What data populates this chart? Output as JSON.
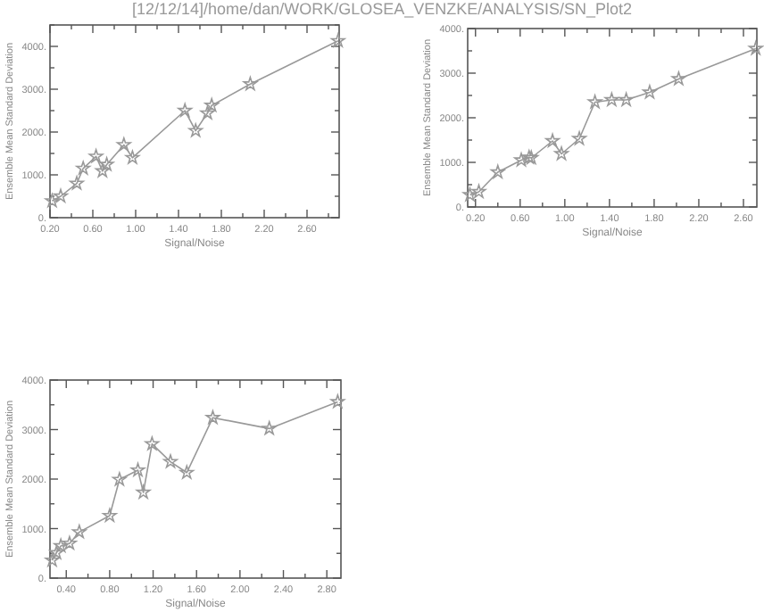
{
  "chart_data": [
    {
      "type": "line",
      "title": "[12/12/14]/home/dan/WORK/GLOSEA_VENZKE/ANALYSIS/SN_Plot2",
      "xlabel": "Signal/Noise",
      "ylabel": "Ensemble Mean Standard Deviation",
      "marker": "star",
      "line_style": "solid",
      "grid": false,
      "xlim": [
        0.2,
        2.9
      ],
      "ylim": [
        0,
        4500
      ],
      "xticks": [
        {
          "value": 0.2,
          "label": "0.20"
        },
        {
          "value": 0.4,
          "label": null
        },
        {
          "value": 0.6,
          "label": "0.60"
        },
        {
          "value": 0.8,
          "label": null
        },
        {
          "value": 1.0,
          "label": "1.00"
        },
        {
          "value": 1.2,
          "label": null
        },
        {
          "value": 1.4,
          "label": "1.40"
        },
        {
          "value": 1.6,
          "label": null
        },
        {
          "value": 1.8,
          "label": "1.80"
        },
        {
          "value": 2.0,
          "label": null
        },
        {
          "value": 2.2,
          "label": "2.20"
        },
        {
          "value": 2.4,
          "label": null
        },
        {
          "value": 2.6,
          "label": "2.60"
        },
        {
          "value": 2.8,
          "label": null
        }
      ],
      "yticks": [
        {
          "value": 0,
          "label": "0."
        },
        {
          "value": 500,
          "label": null
        },
        {
          "value": 1000,
          "label": "1000."
        },
        {
          "value": 1500,
          "label": null
        },
        {
          "value": 2000,
          "label": "2000."
        },
        {
          "value": 2500,
          "label": null
        },
        {
          "value": 3000,
          "label": "3000."
        },
        {
          "value": 3500,
          "label": null
        },
        {
          "value": 4000,
          "label": "4000."
        },
        {
          "value": 4500,
          "label": null
        }
      ],
      "series": [
        {
          "color": "#999999",
          "x": [
            0.22,
            0.3,
            0.45,
            0.51,
            0.63,
            0.69,
            0.73,
            0.89,
            0.97,
            1.46,
            1.56,
            1.67,
            1.71,
            2.07,
            2.89
          ],
          "values": [
            390,
            500,
            800,
            1150,
            1430,
            1090,
            1240,
            1700,
            1400,
            2500,
            2030,
            2440,
            2620,
            3120,
            4130
          ]
        }
      ]
    },
    {
      "type": "line",
      "xlabel": "Signal/Noise",
      "ylabel": "Ensemble Mean Standard Deviation",
      "marker": "star",
      "line_style": "solid",
      "grid": false,
      "xlim": [
        0.13,
        2.72
      ],
      "ylim": [
        0,
        4000
      ],
      "xticks": [
        {
          "value": 0.2,
          "label": "0.20"
        },
        {
          "value": 0.4,
          "label": null
        },
        {
          "value": 0.6,
          "label": "0.60"
        },
        {
          "value": 0.8,
          "label": null
        },
        {
          "value": 1.0,
          "label": "1.00"
        },
        {
          "value": 1.2,
          "label": null
        },
        {
          "value": 1.4,
          "label": "1.40"
        },
        {
          "value": 1.6,
          "label": null
        },
        {
          "value": 1.8,
          "label": "1.80"
        },
        {
          "value": 2.0,
          "label": null
        },
        {
          "value": 2.2,
          "label": "2.20"
        },
        {
          "value": 2.4,
          "label": null
        },
        {
          "value": 2.6,
          "label": "2.60"
        }
      ],
      "yticks": [
        {
          "value": 0,
          "label": "0."
        },
        {
          "value": 500,
          "label": null
        },
        {
          "value": 1000,
          "label": "1000."
        },
        {
          "value": 1500,
          "label": null
        },
        {
          "value": 2000,
          "label": "2000."
        },
        {
          "value": 2500,
          "label": null
        },
        {
          "value": 3000,
          "label": "3000."
        },
        {
          "value": 3500,
          "label": null
        },
        {
          "value": 4000,
          "label": "4000."
        }
      ],
      "series": [
        {
          "color": "#999999",
          "x": [
            0.15,
            0.23,
            0.4,
            0.61,
            0.68,
            0.7,
            0.89,
            0.97,
            1.13,
            1.27,
            1.42,
            1.55,
            1.76,
            2.02,
            2.71
          ],
          "values": [
            270,
            340,
            780,
            1050,
            1110,
            1100,
            1480,
            1190,
            1530,
            2350,
            2400,
            2400,
            2570,
            2870,
            3550
          ]
        }
      ]
    },
    {
      "type": "line",
      "xlabel": "Signal/Noise",
      "ylabel": "Ensemble Mean Standard Deviation",
      "marker": "star",
      "line_style": "solid",
      "grid": false,
      "xlim": [
        0.25,
        2.93
      ],
      "ylim": [
        0,
        4000
      ],
      "xticks": [
        {
          "value": 0.4,
          "label": "0.40"
        },
        {
          "value": 0.6,
          "label": null
        },
        {
          "value": 0.8,
          "label": "0.80"
        },
        {
          "value": 1.0,
          "label": null
        },
        {
          "value": 1.2,
          "label": "1.20"
        },
        {
          "value": 1.4,
          "label": null
        },
        {
          "value": 1.6,
          "label": "1.60"
        },
        {
          "value": 1.8,
          "label": null
        },
        {
          "value": 2.0,
          "label": "2.00"
        },
        {
          "value": 2.2,
          "label": null
        },
        {
          "value": 2.4,
          "label": "2.40"
        },
        {
          "value": 2.6,
          "label": null
        },
        {
          "value": 2.8,
          "label": "2.80"
        }
      ],
      "yticks": [
        {
          "value": 0,
          "label": "0."
        },
        {
          "value": 500,
          "label": null
        },
        {
          "value": 1000,
          "label": "1000."
        },
        {
          "value": 1500,
          "label": null
        },
        {
          "value": 2000,
          "label": "2000."
        },
        {
          "value": 2500,
          "label": null
        },
        {
          "value": 3000,
          "label": "3000."
        },
        {
          "value": 3500,
          "label": null
        },
        {
          "value": 4000,
          "label": "4000."
        }
      ],
      "series": [
        {
          "color": "#999999",
          "x": [
            0.27,
            0.31,
            0.35,
            0.43,
            0.52,
            0.8,
            0.89,
            1.06,
            1.11,
            1.19,
            1.36,
            1.51,
            1.75,
            2.27,
            2.9
          ],
          "values": [
            360,
            510,
            650,
            700,
            930,
            1260,
            1990,
            2180,
            1730,
            2710,
            2350,
            2130,
            3240,
            3020,
            3560
          ]
        }
      ]
    }
  ]
}
